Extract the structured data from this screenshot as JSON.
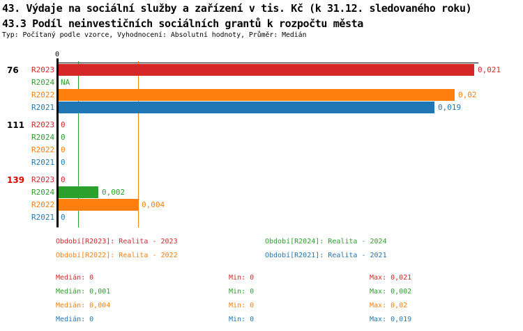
{
  "colors": {
    "red": "#d62728",
    "green": "#2ca02c",
    "orange": "#ff7f0e",
    "blue": "#1f77b4",
    "black": "#000000",
    "highlight_red": "#dd0000"
  },
  "chart_data": {
    "type": "bar",
    "orientation": "horizontal",
    "title": "43. Výdaje na sociální služby a zařízení v tis. Kč (k 31.12. sledovaného roku)",
    "subtitle": "43.3 Podíl neinvestičních sociálních grantů k rozpočtu města",
    "type_info": "Typ: Počítaný podle vzorce, Vyhodnocení: Absolutní hodnoty, Průměr: Medián",
    "axis": {
      "zero_label": "0",
      "xmax": 0.021,
      "grid": false
    },
    "groups": [
      {
        "label": "76",
        "label_color": "black",
        "rows": [
          {
            "series": "R2023",
            "color": "red",
            "value": 0.021,
            "display": "0,021"
          },
          {
            "series": "R2024",
            "color": "green",
            "value": null,
            "display": "NA"
          },
          {
            "series": "R2022",
            "color": "orange",
            "value": 0.02,
            "display": "0,02"
          },
          {
            "series": "R2021",
            "color": "blue",
            "value": 0.019,
            "display": "0,019"
          }
        ]
      },
      {
        "label": "111",
        "label_color": "black",
        "rows": [
          {
            "series": "R2023",
            "color": "red",
            "value": 0,
            "display": "0"
          },
          {
            "series": "R2024",
            "color": "green",
            "value": 0,
            "display": "0"
          },
          {
            "series": "R2022",
            "color": "orange",
            "value": 0,
            "display": "0"
          },
          {
            "series": "R2021",
            "color": "blue",
            "value": 0,
            "display": "0"
          }
        ]
      },
      {
        "label": "139",
        "label_color": "highlight_red",
        "rows": [
          {
            "series": "R2023",
            "color": "red",
            "value": 0,
            "display": "0"
          },
          {
            "series": "R2024",
            "color": "green",
            "value": 0.002,
            "display": "0,002"
          },
          {
            "series": "R2022",
            "color": "orange",
            "value": 0.004,
            "display": "0,004"
          },
          {
            "series": "R2021",
            "color": "blue",
            "value": 0,
            "display": "0"
          }
        ]
      }
    ],
    "median_lines": [
      {
        "series": "R2024",
        "color": "green",
        "value": 0.001
      },
      {
        "series": "R2022",
        "color": "orange",
        "value": 0.004
      }
    ],
    "legend_position": "bottom"
  },
  "legend": {
    "items": [
      {
        "label": "Období[R2023]: Realita - 2023",
        "color": "red"
      },
      {
        "label": "Období[R2024]: Realita - 2024",
        "color": "green"
      },
      {
        "label": "Období[R2022]: Realita - 2022",
        "color": "orange"
      },
      {
        "label": "Období[R2021]: Realita - 2021",
        "color": "blue"
      }
    ]
  },
  "stats": {
    "median_label": "Medián: ",
    "min_label": "Min: ",
    "max_label": "Max: ",
    "rows": [
      {
        "series": "R2023",
        "color": "red",
        "median": "0",
        "min": "0",
        "max": "0,021"
      },
      {
        "series": "R2024",
        "color": "green",
        "median": "0,001",
        "min": "0",
        "max": "0,002"
      },
      {
        "series": "R2022",
        "color": "orange",
        "median": "0,004",
        "min": "0",
        "max": "0,02"
      },
      {
        "series": "R2021",
        "color": "blue",
        "median": "0",
        "min": "0",
        "max": "0,019"
      }
    ]
  }
}
